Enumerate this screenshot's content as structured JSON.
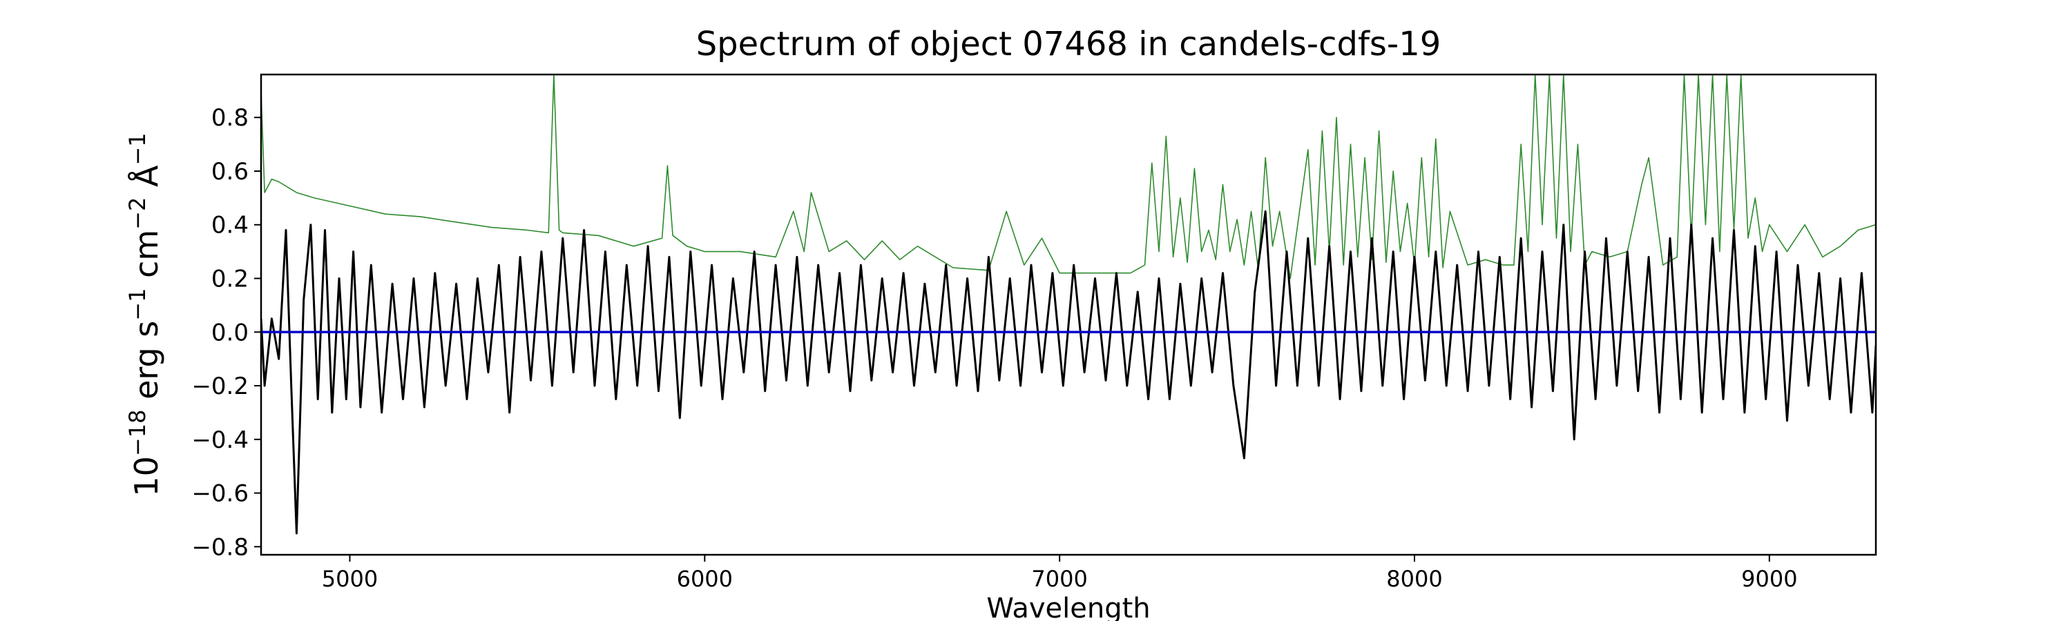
{
  "chart_data": {
    "type": "line",
    "title": "Spectrum of object 07468 in candels-cdfs-19",
    "xlabel": "Wavelength",
    "ylabel": {
      "base": "10",
      "exp1": "−18",
      "erg": " erg s",
      "exp2": "−1",
      "cm": " cm",
      "exp3": "−2",
      "ang": " Å",
      "exp4": "−1"
    },
    "xlim": [
      4750,
      9300
    ],
    "ylim": [
      -0.83,
      0.96
    ],
    "xticks": [
      {
        "value": 5000,
        "label": "5000"
      },
      {
        "value": 6000,
        "label": "6000"
      },
      {
        "value": 7000,
        "label": "7000"
      },
      {
        "value": 8000,
        "label": "8000"
      },
      {
        "value": 9000,
        "label": "9000"
      }
    ],
    "yticks": [
      {
        "value": 0.8,
        "label": "0.8"
      },
      {
        "value": 0.6,
        "label": "0.6"
      },
      {
        "value": 0.4,
        "label": "0.4"
      },
      {
        "value": 0.2,
        "label": "0.2"
      },
      {
        "value": 0.0,
        "label": "0.0"
      },
      {
        "value": -0.2,
        "label": "−0.2"
      },
      {
        "value": -0.4,
        "label": "−0.4"
      },
      {
        "value": -0.6,
        "label": "−0.6"
      },
      {
        "value": -0.8,
        "label": "−0.8"
      }
    ],
    "grid": false,
    "legend": "none",
    "series": [
      {
        "role": "error",
        "color": "#2e8b2e",
        "x": [
          4750,
          4760,
          4780,
          4800,
          4850,
          4900,
          5000,
          5100,
          5200,
          5300,
          5400,
          5500,
          5560,
          5575,
          5590,
          5600,
          5700,
          5800,
          5880,
          5895,
          5910,
          5950,
          6000,
          6100,
          6200,
          6250,
          6280,
          6300,
          6350,
          6400,
          6450,
          6500,
          6550,
          6600,
          6700,
          6800,
          6850,
          6900,
          6950,
          7000,
          7100,
          7200,
          7240,
          7260,
          7280,
          7300,
          7320,
          7340,
          7360,
          7380,
          7400,
          7420,
          7440,
          7460,
          7480,
          7500,
          7520,
          7540,
          7560,
          7580,
          7600,
          7620,
          7650,
          7700,
          7720,
          7740,
          7760,
          7780,
          7800,
          7820,
          7840,
          7860,
          7880,
          7900,
          7920,
          7940,
          7960,
          7980,
          8000,
          8020,
          8040,
          8060,
          8080,
          8100,
          8150,
          8200,
          8250,
          8280,
          8300,
          8320,
          8340,
          8360,
          8380,
          8400,
          8420,
          8440,
          8460,
          8480,
          8500,
          8550,
          8600,
          8640,
          8660,
          8680,
          8700,
          8740,
          8760,
          8780,
          8800,
          8820,
          8840,
          8860,
          8880,
          8900,
          8920,
          8940,
          8960,
          8980,
          9000,
          9050,
          9100,
          9150,
          9200,
          9250,
          9300
        ],
        "y": [
          0.9,
          0.52,
          0.57,
          0.56,
          0.52,
          0.5,
          0.47,
          0.44,
          0.43,
          0.41,
          0.39,
          0.38,
          0.37,
          0.96,
          0.38,
          0.37,
          0.36,
          0.32,
          0.35,
          0.62,
          0.36,
          0.32,
          0.3,
          0.3,
          0.28,
          0.45,
          0.3,
          0.52,
          0.3,
          0.34,
          0.27,
          0.34,
          0.27,
          0.32,
          0.24,
          0.23,
          0.45,
          0.25,
          0.35,
          0.22,
          0.22,
          0.22,
          0.25,
          0.63,
          0.3,
          0.73,
          0.28,
          0.5,
          0.26,
          0.61,
          0.3,
          0.38,
          0.27,
          0.55,
          0.3,
          0.42,
          0.25,
          0.45,
          0.23,
          0.65,
          0.32,
          0.45,
          0.2,
          0.68,
          0.25,
          0.75,
          0.3,
          0.8,
          0.25,
          0.7,
          0.28,
          0.65,
          0.27,
          0.75,
          0.26,
          0.6,
          0.3,
          0.48,
          0.25,
          0.65,
          0.28,
          0.72,
          0.24,
          0.45,
          0.25,
          0.27,
          0.25,
          0.25,
          0.7,
          0.3,
          0.96,
          0.4,
          0.96,
          0.35,
          0.96,
          0.3,
          0.7,
          0.25,
          0.3,
          0.28,
          0.3,
          0.55,
          0.65,
          0.45,
          0.25,
          0.28,
          0.96,
          0.35,
          0.96,
          0.4,
          0.96,
          0.3,
          0.96,
          0.38,
          0.96,
          0.35,
          0.5,
          0.3,
          0.4,
          0.3,
          0.4,
          0.28,
          0.32,
          0.38,
          0.4
        ]
      },
      {
        "role": "flux",
        "color": "#000000",
        "x": [
          4750,
          4760,
          4780,
          4800,
          4820,
          4835,
          4850,
          4870,
          4890,
          4910,
          4930,
          4950,
          4970,
          4990,
          5010,
          5030,
          5060,
          5090,
          5120,
          5150,
          5180,
          5210,
          5240,
          5270,
          5300,
          5330,
          5360,
          5390,
          5420,
          5450,
          5480,
          5510,
          5540,
          5570,
          5600,
          5630,
          5660,
          5690,
          5720,
          5750,
          5780,
          5810,
          5840,
          5870,
          5900,
          5930,
          5960,
          5990,
          6020,
          6050,
          6080,
          6110,
          6140,
          6170,
          6200,
          6230,
          6260,
          6290,
          6320,
          6350,
          6380,
          6410,
          6440,
          6470,
          6500,
          6530,
          6560,
          6590,
          6620,
          6650,
          6680,
          6710,
          6740,
          6770,
          6800,
          6830,
          6860,
          6890,
          6920,
          6950,
          6980,
          7010,
          7040,
          7070,
          7100,
          7130,
          7160,
          7190,
          7220,
          7250,
          7280,
          7310,
          7340,
          7370,
          7400,
          7430,
          7460,
          7490,
          7520,
          7550,
          7580,
          7610,
          7640,
          7670,
          7700,
          7730,
          7760,
          7790,
          7820,
          7850,
          7880,
          7910,
          7940,
          7970,
          8000,
          8030,
          8060,
          8090,
          8120,
          8150,
          8180,
          8210,
          8240,
          8270,
          8300,
          8330,
          8360,
          8390,
          8420,
          8450,
          8480,
          8510,
          8540,
          8570,
          8600,
          8630,
          8660,
          8690,
          8720,
          8750,
          8780,
          8810,
          8840,
          8870,
          8900,
          8930,
          8960,
          8990,
          9020,
          9050,
          9080,
          9110,
          9140,
          9170,
          9200,
          9230,
          9260,
          9290,
          9300
        ],
        "y": [
          0.05,
          -0.2,
          0.05,
          -0.1,
          0.38,
          -0.2,
          -0.75,
          0.12,
          0.4,
          -0.25,
          0.38,
          -0.3,
          0.2,
          -0.25,
          0.3,
          -0.28,
          0.25,
          -0.3,
          0.18,
          -0.25,
          0.2,
          -0.28,
          0.22,
          -0.2,
          0.18,
          -0.25,
          0.2,
          -0.15,
          0.25,
          -0.3,
          0.28,
          -0.18,
          0.3,
          -0.2,
          0.35,
          -0.15,
          0.38,
          -0.2,
          0.3,
          -0.25,
          0.25,
          -0.2,
          0.32,
          -0.22,
          0.28,
          -0.32,
          0.3,
          -0.2,
          0.25,
          -0.25,
          0.2,
          -0.15,
          0.3,
          -0.22,
          0.25,
          -0.18,
          0.28,
          -0.2,
          0.25,
          -0.15,
          0.22,
          -0.22,
          0.25,
          -0.18,
          0.2,
          -0.15,
          0.22,
          -0.2,
          0.18,
          -0.15,
          0.25,
          -0.2,
          0.2,
          -0.22,
          0.28,
          -0.18,
          0.2,
          -0.2,
          0.25,
          -0.15,
          0.22,
          -0.2,
          0.25,
          -0.15,
          0.2,
          -0.18,
          0.22,
          -0.2,
          0.15,
          -0.25,
          0.2,
          -0.25,
          0.18,
          -0.2,
          0.2,
          -0.15,
          0.22,
          -0.2,
          -0.47,
          0.15,
          0.45,
          -0.2,
          0.3,
          -0.2,
          0.35,
          -0.2,
          0.32,
          -0.25,
          0.3,
          -0.22,
          0.35,
          -0.2,
          0.3,
          -0.25,
          0.28,
          -0.18,
          0.3,
          -0.2,
          0.25,
          -0.22,
          0.3,
          -0.2,
          0.28,
          -0.25,
          0.35,
          -0.28,
          0.3,
          -0.22,
          0.4,
          -0.4,
          0.3,
          -0.25,
          0.35,
          -0.2,
          0.3,
          -0.22,
          0.28,
          -0.3,
          0.35,
          -0.25,
          0.4,
          -0.3,
          0.35,
          -0.25,
          0.38,
          -0.3,
          0.32,
          -0.25,
          0.3,
          -0.33,
          0.25,
          -0.2,
          0.22,
          -0.25,
          0.2,
          -0.3,
          0.22,
          -0.3,
          -0.05
        ]
      },
      {
        "role": "zero",
        "color": "#0000cc",
        "x": [
          4750,
          9300
        ],
        "y": [
          0,
          0
        ]
      }
    ]
  }
}
